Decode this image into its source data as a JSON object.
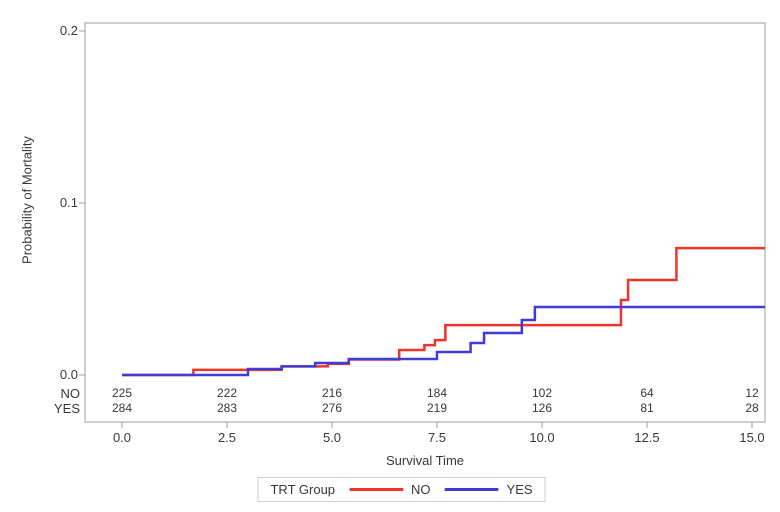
{
  "figure": {
    "ylabel": "Probability of Mortality",
    "xlabel": "Survival Time",
    "legend": {
      "title": "TRT Group",
      "entries": [
        {
          "label": "NO",
          "color": "#ec3528"
        },
        {
          "label": "YES",
          "color": "#403cd5"
        }
      ]
    }
  },
  "chart_data": {
    "type": "line",
    "subtype": "step-cumulative-incidence",
    "title": "",
    "xlabel": "Survival Time",
    "ylabel": "Probability of Mortality",
    "xlim": [
      -0.88,
      15.31
    ],
    "ylim": [
      -0.027,
      0.205
    ],
    "x_ticks": [
      0.0,
      2.5,
      5.0,
      7.5,
      10.0,
      12.5,
      15.0
    ],
    "y_ticks": [
      0.0,
      0.1,
      0.2
    ],
    "grid": false,
    "legend_position": "bottom",
    "legend_title": "TRT Group",
    "series": [
      {
        "name": "NO",
        "color": "#ec3528",
        "step_points": [
          [
            0,
            0
          ],
          [
            1.7,
            0.003
          ],
          [
            3.8,
            0.005
          ],
          [
            4.9,
            0.0065
          ],
          [
            5.4,
            0.009
          ],
          [
            6.6,
            0.0145
          ],
          [
            7.2,
            0.0174
          ],
          [
            7.45,
            0.0203
          ],
          [
            7.7,
            0.029
          ],
          [
            11.88,
            0.0436
          ],
          [
            12.05,
            0.0552
          ],
          [
            13.2,
            0.0738
          ]
        ]
      },
      {
        "name": "YES",
        "color": "#403cd5",
        "step_points": [
          [
            0,
            0
          ],
          [
            3.0,
            0.0035
          ],
          [
            3.8,
            0.005
          ],
          [
            4.6,
            0.007
          ],
          [
            5.4,
            0.0093
          ],
          [
            7.5,
            0.0134
          ],
          [
            8.3,
            0.0186
          ],
          [
            8.62,
            0.0244
          ],
          [
            9.52,
            0.032
          ],
          [
            9.83,
            0.0395
          ]
        ]
      }
    ],
    "at_risk_table": {
      "times": [
        0,
        2.5,
        5,
        7.5,
        10,
        12.5,
        15
      ],
      "rows": [
        {
          "label": "NO",
          "counts": [
            225,
            222,
            216,
            184,
            102,
            64,
            12
          ]
        },
        {
          "label": "YES",
          "counts": [
            284,
            283,
            276,
            219,
            126,
            81,
            28
          ]
        }
      ]
    }
  }
}
